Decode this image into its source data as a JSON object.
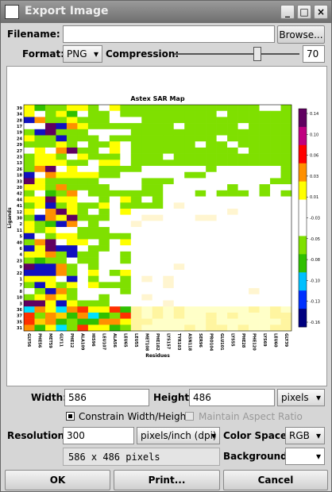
{
  "window": {
    "title": "Export Image"
  },
  "form": {
    "filename_label": "Filename:",
    "filename": "",
    "browse": "Browse...",
    "format_label": "Format:",
    "format": "PNG",
    "compression_label": "Compression:",
    "compression": "70",
    "width_label": "Width:",
    "width": "586",
    "height_label": "Height:",
    "height": "486",
    "units": "pixels",
    "constrain": "Constrain Width/Height",
    "aspect": "Maintain Aspect Ratio",
    "resolution_label": "Resolution:",
    "resolution": "300",
    "resolution_units": "pixels/inch (dpi)",
    "colorspace_label": "Color Space:",
    "colorspace": "RGB",
    "info": "586 x 486 pixels",
    "background_label": "Background:"
  },
  "buttons": {
    "ok": "OK",
    "print": "Print...",
    "cancel": "Cancel"
  },
  "preview": {
    "title": "Astex SAR Map",
    "y_axis": "Ligands",
    "x_axis": "Residues",
    "colorbar_ticks": [
      "0.14",
      "0.10",
      "0.06",
      "0.03",
      "0.01",
      "-0.03",
      "-0.05",
      "-0.08",
      "-0.10",
      "-0.13",
      "-0.16"
    ],
    "y_labels": [
      "39",
      "34",
      "28",
      "17",
      "19",
      "24",
      "29",
      "27",
      "23",
      "13",
      "26",
      "18",
      "33",
      "20",
      "42",
      "44",
      "41",
      "12",
      "30",
      "2",
      "11",
      "5",
      "40",
      "6",
      "4",
      "23",
      "9",
      "22",
      "1",
      "7",
      "8",
      "10",
      "3",
      "36",
      "37",
      "35",
      "31"
    ],
    "x_labels": [
      "GLY56",
      "PHE56",
      "MET59",
      "GLY11",
      "PHE12",
      "ALA109",
      "HIS96",
      "LEU107",
      "ALA56",
      "LEU65",
      "LEU55",
      "MET108",
      "PHE182",
      "LYS157",
      "TYR103",
      "ASN118",
      "SER96",
      "PRO104",
      "GLU101",
      "LYS55",
      "PHE28",
      "PHE120",
      "LYS69",
      "LEU60",
      "GLY39"
    ]
  }
}
